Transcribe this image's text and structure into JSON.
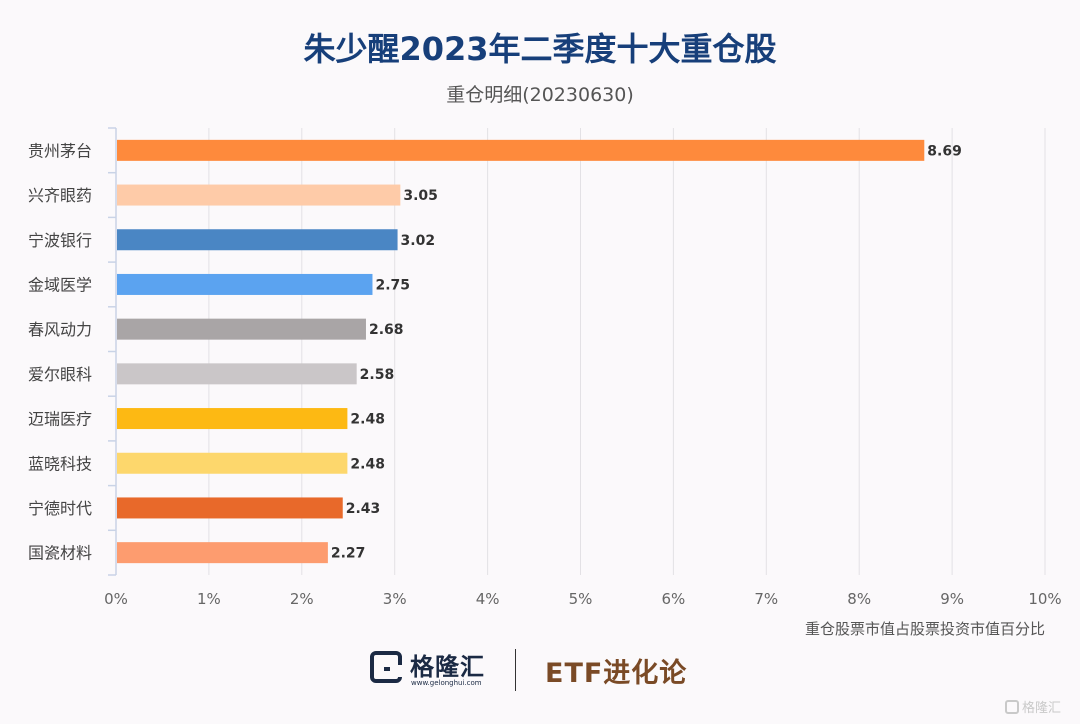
{
  "header": {
    "title": "朱少醒2023年二季度十大重仓股",
    "subtitle": "重仓明细(20230630)"
  },
  "chart_data": {
    "type": "bar",
    "orientation": "horizontal",
    "categories": [
      "贵州茅台",
      "兴齐眼药",
      "宁波银行",
      "金域医学",
      "春风动力",
      "爱尔眼科",
      "迈瑞医疗",
      "蓝晓科技",
      "宁德时代",
      "国瓷材料"
    ],
    "values": [
      8.69,
      3.05,
      3.02,
      2.75,
      2.68,
      2.58,
      2.48,
      2.48,
      2.43,
      2.27
    ],
    "value_labels": [
      "8.69",
      "3.05",
      "3.02",
      "2.75",
      "2.68",
      "2.58",
      "2.48",
      "2.48",
      "2.43",
      "2.27"
    ],
    "colors": [
      "#fe8a3c",
      "#fecba8",
      "#4a86c4",
      "#5ba3f0",
      "#a9a5a6",
      "#cac6c8",
      "#fdb913",
      "#fdd76c",
      "#e8692a",
      "#fd9c6f"
    ],
    "xlim": [
      0,
      10
    ],
    "xticks": [
      0,
      1,
      2,
      3,
      4,
      5,
      6,
      7,
      8,
      9,
      10
    ],
    "xtick_labels": [
      "0%",
      "1%",
      "2%",
      "3%",
      "4%",
      "5%",
      "6%",
      "7%",
      "8%",
      "9%",
      "10%"
    ],
    "xlabel": "重仓股票市值占股票投资市值百分比",
    "grid": true
  },
  "footer": {
    "logo_name": "格隆汇",
    "logo_url": "www.gelonghui.com",
    "brand": "ETF进化论",
    "watermark": "格隆汇"
  }
}
